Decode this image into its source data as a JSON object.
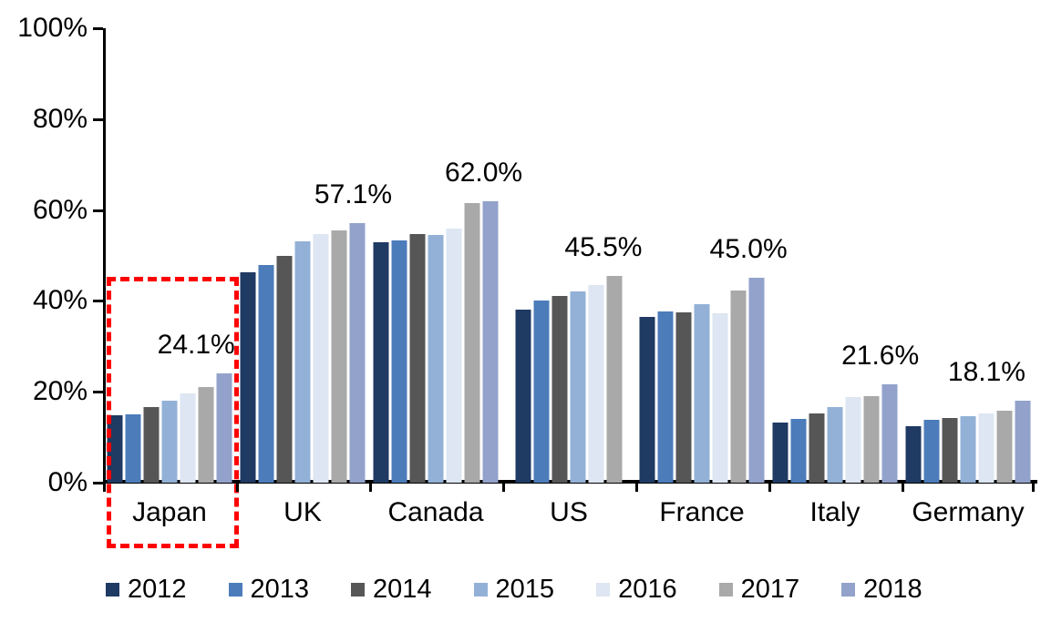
{
  "chart_data": {
    "type": "bar",
    "title": "",
    "xlabel": "",
    "ylabel": "",
    "ylim": [
      0,
      100
    ],
    "grid": false,
    "legend_position": "bottom",
    "y_ticks": [
      "0%",
      "20%",
      "40%",
      "60%",
      "80%",
      "100%"
    ],
    "categories": [
      "Japan",
      "UK",
      "Canada",
      "US",
      "France",
      "Italy",
      "Germany"
    ],
    "series": [
      {
        "name": "2012",
        "color": "#1F3A63",
        "values": [
          14.8,
          46.3,
          53.0,
          38.0,
          36.5,
          13.2,
          12.5
        ]
      },
      {
        "name": "2013",
        "color": "#4C7CBA",
        "values": [
          15.0,
          47.8,
          53.3,
          40.0,
          37.6,
          14.0,
          13.8
        ]
      },
      {
        "name": "2014",
        "color": "#565656",
        "values": [
          16.6,
          49.9,
          54.8,
          41.0,
          37.5,
          15.2,
          14.2
        ]
      },
      {
        "name": "2015",
        "color": "#93B1D7",
        "values": [
          18.0,
          53.1,
          54.5,
          42.0,
          39.3,
          16.7,
          14.6
        ]
      },
      {
        "name": "2016",
        "color": "#DDE6F2",
        "values": [
          19.6,
          54.7,
          56.0,
          43.5,
          37.3,
          18.8,
          15.3
        ]
      },
      {
        "name": "2017",
        "color": "#A9A9A9",
        "values": [
          21.0,
          55.6,
          61.5,
          45.5,
          42.2,
          19.0,
          15.9
        ]
      },
      {
        "name": "2018",
        "color": "#92A2CB",
        "values": [
          24.1,
          57.1,
          62.0,
          null,
          45.0,
          21.6,
          18.1
        ]
      }
    ],
    "group_data_labels": [
      "24.1%",
      "57.1%",
      "62.0%",
      "45.5%",
      "45.0%",
      "21.6%",
      "18.1%"
    ],
    "highlight": {
      "category": "Japan",
      "shape": "dashed-rectangle",
      "color": "#FF0000"
    }
  }
}
